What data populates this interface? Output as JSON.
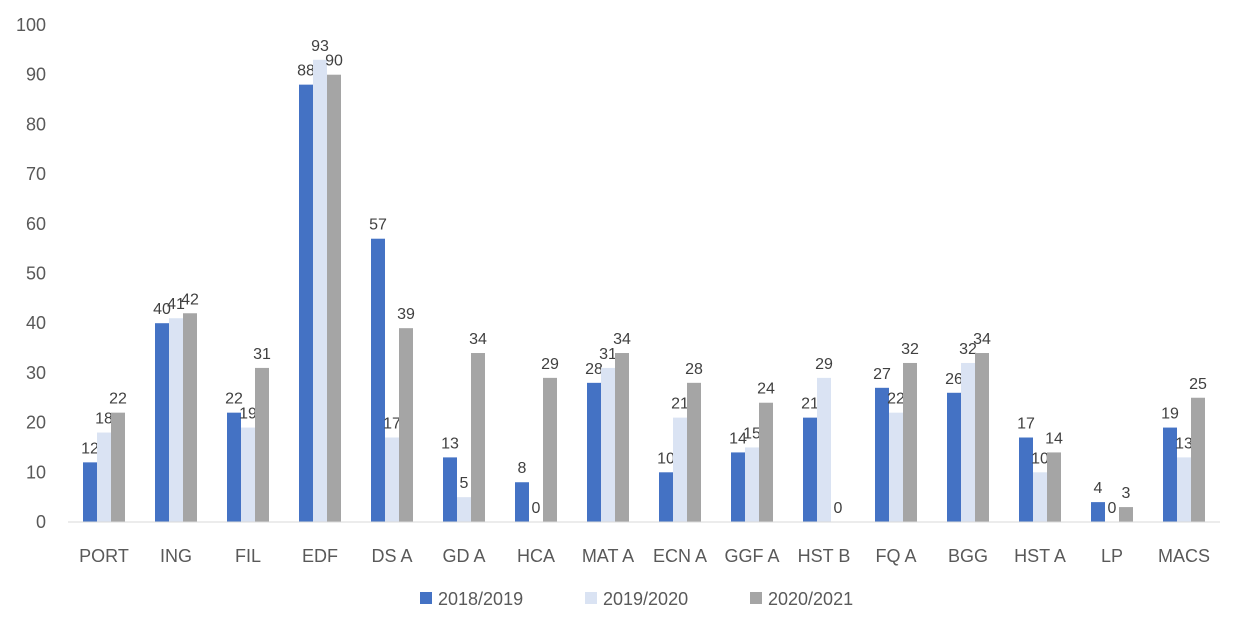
{
  "chart_data": {
    "type": "bar",
    "title": "",
    "xlabel": "",
    "ylabel": "",
    "ylim": [
      0,
      100
    ],
    "yticks": [
      0,
      10,
      20,
      30,
      40,
      50,
      60,
      70,
      80,
      90,
      100
    ],
    "grid": false,
    "legend_position": "bottom",
    "categories": [
      "PORT",
      "ING",
      "FIL",
      "EDF",
      "DS A",
      "GD A",
      "HCA",
      "MAT A",
      "ECN A",
      "GGF A",
      "HST B",
      "FQ A",
      "BGG",
      "HST A",
      "LP",
      "MACS"
    ],
    "series": [
      {
        "name": "2018/2019",
        "color": "#4472c4",
        "values": [
          12,
          40,
          22,
          88,
          57,
          13,
          8,
          28,
          10,
          14,
          21,
          27,
          26,
          17,
          4,
          19
        ]
      },
      {
        "name": "2019/2020",
        "color": "#dae3f3",
        "values": [
          18,
          41,
          19,
          93,
          17,
          5,
          0,
          31,
          21,
          15,
          29,
          22,
          32,
          10,
          0,
          13
        ]
      },
      {
        "name": "2020/2021",
        "color": "#a5a5a5",
        "values": [
          22,
          42,
          31,
          90,
          39,
          34,
          29,
          34,
          28,
          24,
          0,
          32,
          34,
          14,
          3,
          25
        ]
      }
    ]
  }
}
